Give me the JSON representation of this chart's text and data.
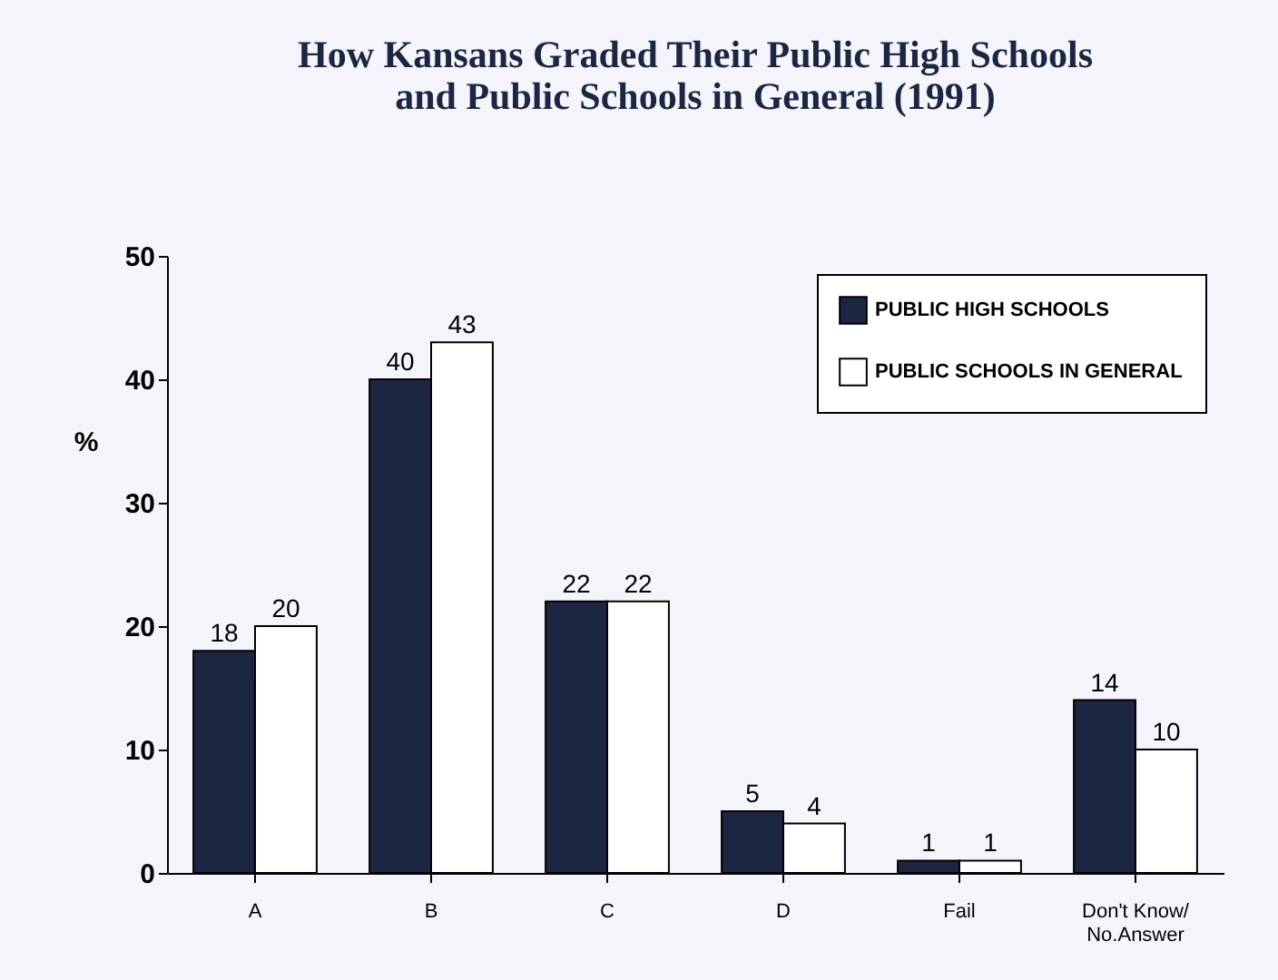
{
  "chart_data": {
    "type": "bar",
    "title": "How Kansans Graded Their Public High Schools\nand Public Schools in General (1991)",
    "categories": [
      "A",
      "B",
      "C",
      "D",
      "Fail",
      "Don't Know/\nNo.Answer"
    ],
    "series": [
      {
        "name": "PUBLIC HIGH SCHOOLS",
        "color": "#1c2541",
        "values": [
          18,
          40,
          22,
          5,
          1,
          14
        ]
      },
      {
        "name": "PUBLIC SCHOOLS IN GENERAL",
        "color": "#ffffff",
        "values": [
          20,
          43,
          22,
          4,
          1,
          10
        ]
      }
    ],
    "ylabel": "%",
    "ylim": [
      0,
      50
    ],
    "yticks": [
      0,
      10,
      20,
      30,
      40,
      50
    ],
    "data_labels": true,
    "legend": "top right",
    "grid": false
  }
}
